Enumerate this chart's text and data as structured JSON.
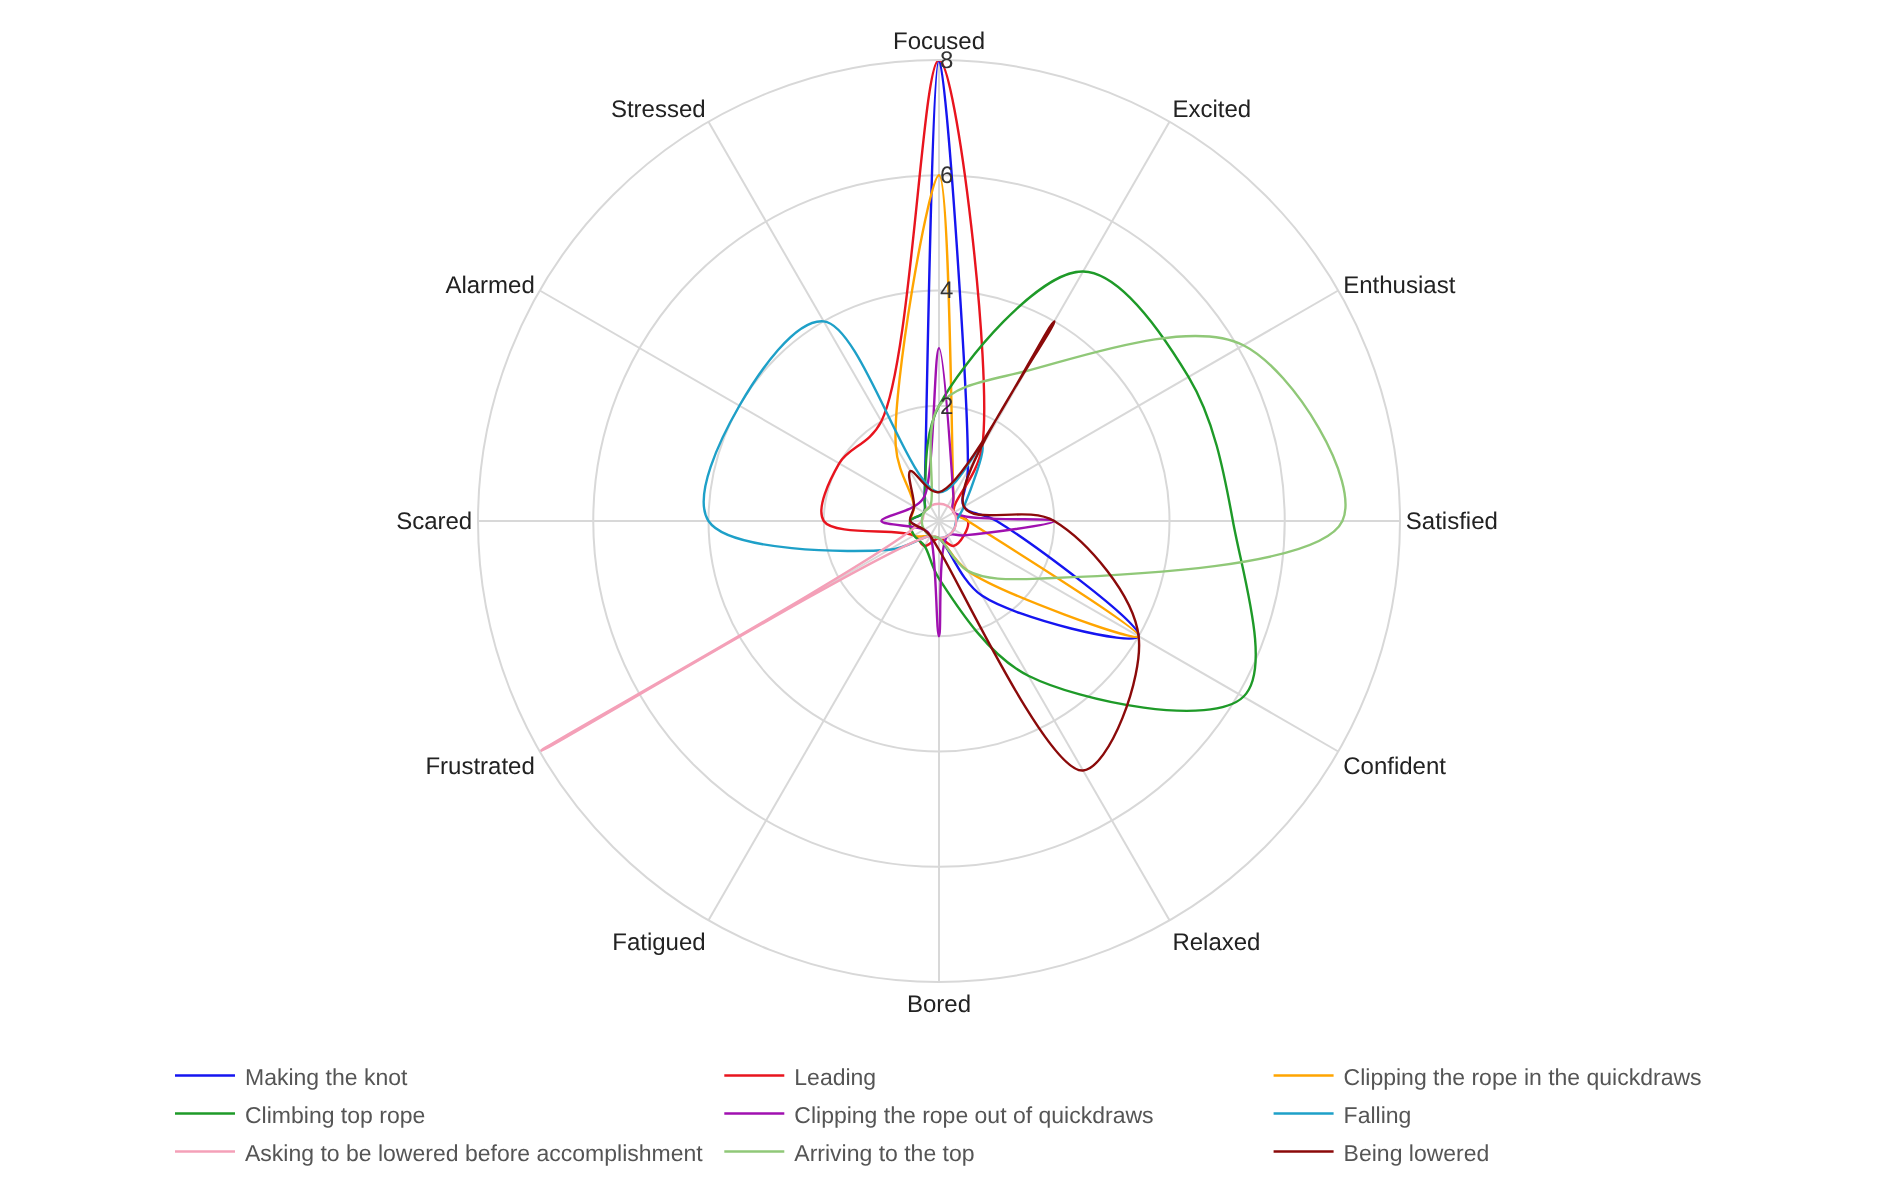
{
  "chart_data": {
    "type": "radar",
    "categories": [
      "Focused",
      "Excited",
      "Enthusiast",
      "Satisfied",
      "Confident",
      "Relaxed",
      "Bored",
      "Fatigued",
      "Frustrated",
      "Scared",
      "Alarmed",
      "Stressed"
    ],
    "series": [
      {
        "name": "Making the knot",
        "color": "#1515f0",
        "values": [
          8,
          1,
          0.5,
          1,
          4,
          1.5,
          0.3,
          0.3,
          0.3,
          0.5,
          0.3,
          0.5
        ]
      },
      {
        "name": "Leading",
        "color": "#e8141e",
        "values": [
          8,
          1.5,
          0.3,
          0.5,
          0.5,
          0.5,
          0.3,
          0.5,
          0.5,
          2,
          2,
          2
        ]
      },
      {
        "name": "Clipping the rope in the quickdraws",
        "color": "#ffa500",
        "values": [
          6,
          0.5,
          0.3,
          0.5,
          4,
          1,
          0.3,
          0.3,
          0.5,
          0.5,
          0.5,
          1.5
        ]
      },
      {
        "name": "Climbing top rope",
        "color": "#1e9a28",
        "values": [
          2,
          5,
          5,
          5.1,
          6.1,
          3.1,
          1,
          0.5,
          0.5,
          0.5,
          0.3,
          0.5
        ]
      },
      {
        "name": "Clipping the rope out of quickdraws",
        "color": "#a010b0",
        "values": [
          3,
          0.5,
          0.3,
          2,
          0.5,
          0.3,
          2,
          0.3,
          0.3,
          1,
          0.5,
          0.5
        ]
      },
      {
        "name": "Falling",
        "color": "#1ea0c8",
        "values": [
          0.5,
          1.5,
          0.5,
          0.3,
          0.3,
          0.3,
          0.3,
          0.3,
          1,
          4,
          4,
          4
        ]
      },
      {
        "name": "Asking to be lowered before accomplishment",
        "color": "#f4a0b8",
        "values": [
          0.3,
          0.3,
          0.3,
          0.3,
          0.3,
          0.3,
          0.3,
          0.3,
          8,
          0.3,
          0.3,
          0.3
        ]
      },
      {
        "name": "Arriving to the top",
        "color": "#90c878",
        "values": [
          2,
          3,
          6.1,
          7,
          2,
          1,
          0.3,
          0.3,
          0.3,
          0.3,
          0.3,
          0.3
        ]
      },
      {
        "name": "Being lowered",
        "color": "#8b0a0a",
        "values": [
          0.5,
          4,
          0.5,
          2,
          4,
          5,
          0.5,
          0.3,
          0.3,
          0.5,
          0.5,
          1
        ]
      }
    ],
    "ylim": [
      0,
      8
    ],
    "yticks": [
      2,
      4,
      6,
      8
    ],
    "grid": true,
    "legend": "bottom"
  }
}
